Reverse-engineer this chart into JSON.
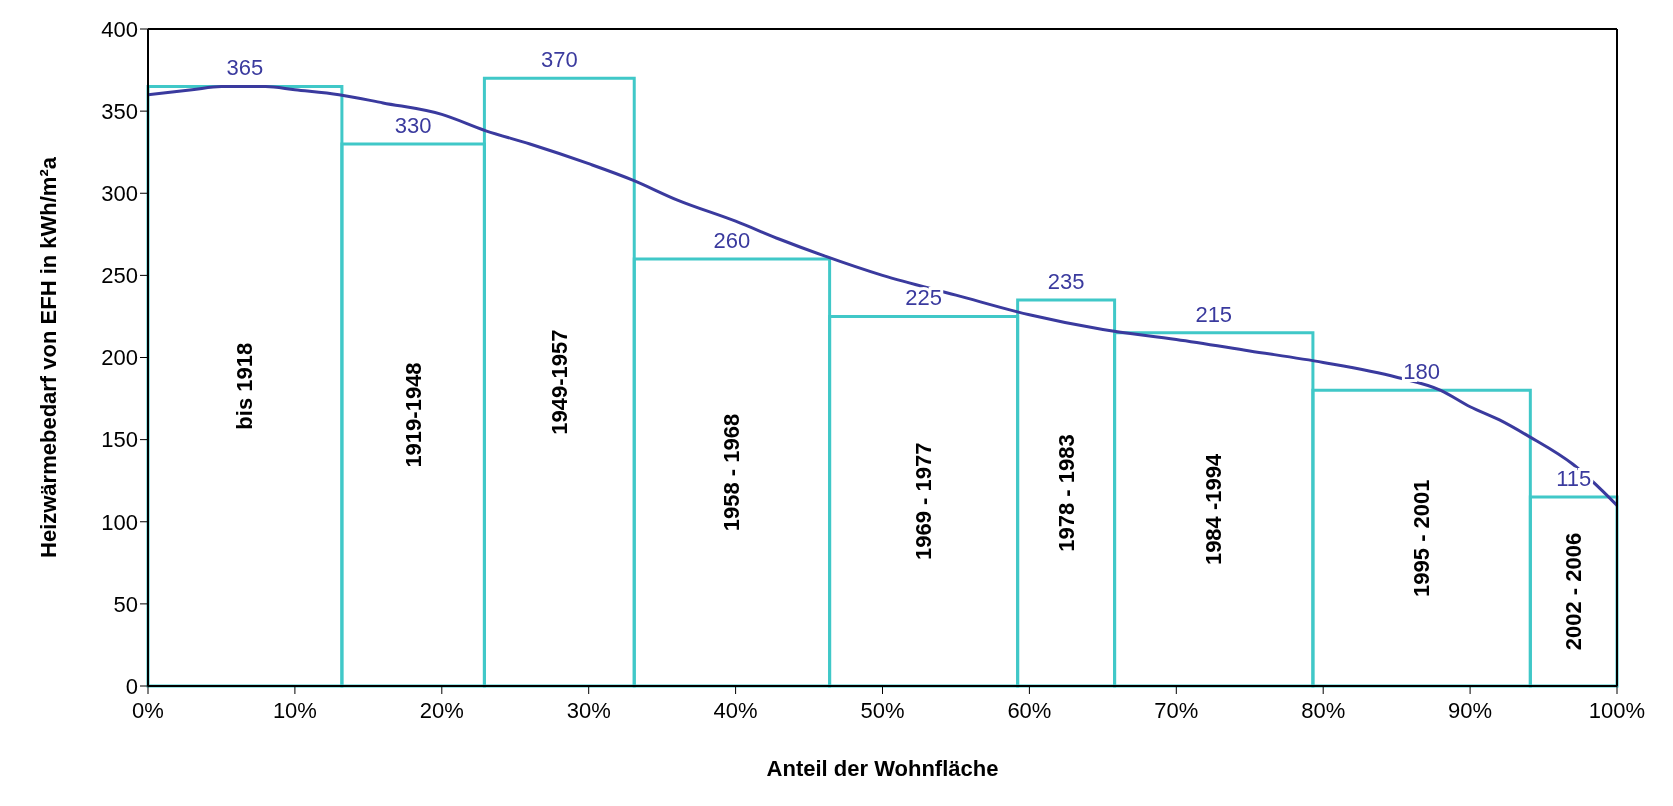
{
  "chart_data": {
    "type": "histogram",
    "xlabel": "Anteil der Wohnfläche",
    "ylabel": "Heizwärmebedarf von EFH in kWh/m²a",
    "bins": [
      0,
      13.2,
      22.9,
      33.1,
      46.4,
      59.2,
      65.8,
      79.3,
      94.1,
      100
    ],
    "values": [
      365,
      330,
      370,
      260,
      225,
      235,
      215,
      180,
      115
    ],
    "color": "#40c8c8",
    "value_labels": [
      "365",
      "330",
      "370",
      "260",
      "225",
      "235",
      "215",
      "180",
      "115"
    ],
    "series": [
      {
        "type": "line",
        "color": "#3a3a9e",
        "x": [
          0,
          3,
          5,
          8,
          10,
          13,
          16,
          20,
          23,
          26,
          30,
          33,
          36,
          40,
          43,
          46,
          50,
          55,
          60,
          65,
          70,
          75,
          80,
          85,
          88,
          90,
          92,
          94,
          97,
          100
        ],
        "values": [
          360,
          363,
          365,
          365,
          363,
          360,
          355,
          348,
          338,
          330,
          318,
          308,
          296,
          283,
          272,
          262,
          250,
          238,
          226,
          217,
          211,
          204,
          197,
          188,
          180,
          170,
          162,
          152,
          135,
          110
        ]
      }
    ],
    "annotations": [
      "bis  1918",
      "1919-1948",
      "1949-1957",
      "1958 - 1968",
      "1969 - 1977",
      "1978 - 1983",
      "1984 -1994",
      "1995 - 2001",
      "2002 - 2006"
    ],
    "xlim": [
      0,
      100
    ],
    "xticks": [
      {
        "value": 0,
        "label": "0%"
      },
      {
        "value": 10,
        "label": "10%"
      },
      {
        "value": 20,
        "label": "20%"
      },
      {
        "value": 30,
        "label": "30%"
      },
      {
        "value": 40,
        "label": "40%"
      },
      {
        "value": 50,
        "label": "50%"
      },
      {
        "value": 60,
        "label": "60%"
      },
      {
        "value": 70,
        "label": "70%"
      },
      {
        "value": 80,
        "label": "80%"
      },
      {
        "value": 90,
        "label": "90%"
      },
      {
        "value": 100,
        "label": "100%"
      }
    ],
    "ylim": [
      0,
      400
    ],
    "yticks": [
      0,
      50,
      100,
      150,
      200,
      250,
      300,
      350,
      400
    ],
    "grid": false
  }
}
